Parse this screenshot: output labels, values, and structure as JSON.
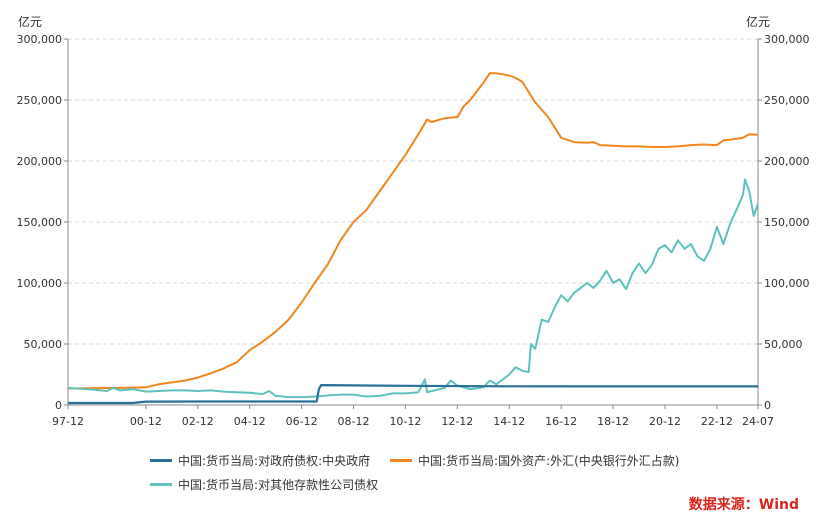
{
  "chart_data": {
    "type": "line",
    "title": "",
    "xlabel": "",
    "ylabel_left": "亿元",
    "ylabel_right": "亿元",
    "ylim": [
      0,
      300000
    ],
    "y_ticks": [
      0,
      50000,
      100000,
      150000,
      200000,
      250000,
      300000
    ],
    "y_tick_labels": [
      "0",
      "50,000",
      "100,000",
      "150,000",
      "200,000",
      "250,000",
      "300,000"
    ],
    "x_range": [
      "1997-12",
      "2024-07"
    ],
    "x_tick_labels": [
      "97-12",
      "00-12",
      "02-12",
      "04-12",
      "06-12",
      "08-12",
      "10-12",
      "12-12",
      "14-12",
      "16-12",
      "18-12",
      "20-12",
      "22-12",
      "24-07"
    ],
    "x_tick_dates": [
      "1997-12",
      "2000-12",
      "2002-12",
      "2004-12",
      "2006-12",
      "2008-12",
      "2010-12",
      "2012-12",
      "2014-12",
      "2016-12",
      "2018-12",
      "2020-12",
      "2022-12",
      "2024-07"
    ],
    "grid": true,
    "legend_position": "bottom",
    "series": [
      {
        "name": "中国:货币当局:对政府债权:中央政府",
        "color": "#2a6f97",
        "points": [
          [
            "1997-12",
            1600
          ],
          [
            "2000-06",
            1600
          ],
          [
            "2000-12",
            2800
          ],
          [
            "2002-12",
            2900
          ],
          [
            "2004-12",
            2900
          ],
          [
            "2006-12",
            2900
          ],
          [
            "2007-07",
            2900
          ],
          [
            "2007-08",
            13000
          ],
          [
            "2007-09",
            16300
          ],
          [
            "2010-12",
            15700
          ],
          [
            "2014-12",
            15300
          ],
          [
            "2018-12",
            15250
          ],
          [
            "2024-07",
            15240
          ]
        ]
      },
      {
        "name": "中国:货币当局:国外资产:外汇(中央银行外汇占款)",
        "color": "#f0861d",
        "points": [
          [
            "1997-12",
            13500
          ],
          [
            "1999-12",
            14000
          ],
          [
            "2000-12",
            14500
          ],
          [
            "2001-06",
            17000
          ],
          [
            "2001-12",
            18500
          ],
          [
            "2002-06",
            20000
          ],
          [
            "2002-12",
            22500
          ],
          [
            "2003-06",
            26000
          ],
          [
            "2003-12",
            30000
          ],
          [
            "2004-06",
            35000
          ],
          [
            "2004-12",
            45000
          ],
          [
            "2005-06",
            52000
          ],
          [
            "2005-12",
            60000
          ],
          [
            "2006-06",
            70000
          ],
          [
            "2006-12",
            84000
          ],
          [
            "2007-06",
            100000
          ],
          [
            "2007-12",
            115000
          ],
          [
            "2008-06",
            135000
          ],
          [
            "2008-12",
            150000
          ],
          [
            "2009-06",
            160000
          ],
          [
            "2009-12",
            175000
          ],
          [
            "2010-06",
            190000
          ],
          [
            "2010-12",
            205000
          ],
          [
            "2011-06",
            222000
          ],
          [
            "2011-10",
            234000
          ],
          [
            "2011-12",
            232000
          ],
          [
            "2012-06",
            235000
          ],
          [
            "2012-12",
            236000
          ],
          [
            "2013-03",
            245000
          ],
          [
            "2013-06",
            250000
          ],
          [
            "2013-12",
            264000
          ],
          [
            "2014-03",
            272000
          ],
          [
            "2014-06",
            272000
          ],
          [
            "2014-12",
            270000
          ],
          [
            "2015-03",
            268000
          ],
          [
            "2015-06",
            265000
          ],
          [
            "2015-12",
            248000
          ],
          [
            "2016-06",
            236000
          ],
          [
            "2016-12",
            219000
          ],
          [
            "2017-06",
            215500
          ],
          [
            "2017-12",
            215000
          ],
          [
            "2018-03",
            215500
          ],
          [
            "2018-06",
            213000
          ],
          [
            "2018-12",
            212500
          ],
          [
            "2019-06",
            212000
          ],
          [
            "2019-12",
            212000
          ],
          [
            "2020-06",
            211500
          ],
          [
            "2020-12",
            211500
          ],
          [
            "2021-06",
            212000
          ],
          [
            "2021-12",
            213000
          ],
          [
            "2022-06",
            213500
          ],
          [
            "2022-12",
            213000
          ],
          [
            "2023-03",
            217000
          ],
          [
            "2023-06",
            217500
          ],
          [
            "2023-12",
            219000
          ],
          [
            "2024-03",
            222000
          ],
          [
            "2024-07",
            221500
          ]
        ]
      },
      {
        "name": "中国:货币当局:对其他存款性公司债权",
        "color": "#5fc1bc",
        "points": [
          [
            "1997-12",
            14000
          ],
          [
            "1998-12",
            12500
          ],
          [
            "1999-06",
            11500
          ],
          [
            "1999-09",
            14000
          ],
          [
            "1999-12",
            12000
          ],
          [
            "2000-06",
            13000
          ],
          [
            "2000-12",
            11000
          ],
          [
            "2001-06",
            11500
          ],
          [
            "2001-12",
            12000
          ],
          [
            "2002-06",
            12000
          ],
          [
            "2002-12",
            11500
          ],
          [
            "2003-06",
            12000
          ],
          [
            "2003-12",
            11000
          ],
          [
            "2004-06",
            10500
          ],
          [
            "2004-12",
            10000
          ],
          [
            "2005-06",
            9000
          ],
          [
            "2005-09",
            11500
          ],
          [
            "2005-12",
            7500
          ],
          [
            "2006-06",
            6500
          ],
          [
            "2006-12",
            6500
          ],
          [
            "2007-06",
            7000
          ],
          [
            "2007-12",
            7800
          ],
          [
            "2008-06",
            8500
          ],
          [
            "2008-12",
            8500
          ],
          [
            "2009-06",
            7000
          ],
          [
            "2009-12",
            7500
          ],
          [
            "2010-06",
            9500
          ],
          [
            "2010-12",
            9500
          ],
          [
            "2011-06",
            10500
          ],
          [
            "2011-09",
            21000
          ],
          [
            "2011-10",
            10500
          ],
          [
            "2012-06",
            14000
          ],
          [
            "2012-09",
            20000
          ],
          [
            "2012-12",
            16000
          ],
          [
            "2013-06",
            13000
          ],
          [
            "2013-12",
            14500
          ],
          [
            "2014-03",
            20000
          ],
          [
            "2014-06",
            17000
          ],
          [
            "2014-12",
            25000
          ],
          [
            "2015-03",
            31000
          ],
          [
            "2015-06",
            28000
          ],
          [
            "2015-09",
            27000
          ],
          [
            "2015-10",
            50000
          ],
          [
            "2015-12",
            46000
          ],
          [
            "2016-03",
            70000
          ],
          [
            "2016-06",
            68000
          ],
          [
            "2016-09",
            80000
          ],
          [
            "2016-12",
            90000
          ],
          [
            "2017-03",
            85000
          ],
          [
            "2017-06",
            92000
          ],
          [
            "2017-09",
            96000
          ],
          [
            "2017-12",
            100000
          ],
          [
            "2018-03",
            96000
          ],
          [
            "2018-06",
            102000
          ],
          [
            "2018-09",
            110000
          ],
          [
            "2018-12",
            100000
          ],
          [
            "2019-03",
            103000
          ],
          [
            "2019-06",
            95000
          ],
          [
            "2019-09",
            108000
          ],
          [
            "2019-12",
            116000
          ],
          [
            "2020-03",
            108000
          ],
          [
            "2020-06",
            115000
          ],
          [
            "2020-09",
            128000
          ],
          [
            "2020-12",
            131000
          ],
          [
            "2021-03",
            125000
          ],
          [
            "2021-06",
            135000
          ],
          [
            "2021-09",
            128000
          ],
          [
            "2021-12",
            132000
          ],
          [
            "2022-03",
            122000
          ],
          [
            "2022-06",
            118000
          ],
          [
            "2022-09",
            128000
          ],
          [
            "2022-12",
            146000
          ],
          [
            "2023-03",
            132000
          ],
          [
            "2023-06",
            148000
          ],
          [
            "2023-09",
            160000
          ],
          [
            "2023-12",
            172000
          ],
          [
            "2024-01",
            185000
          ],
          [
            "2024-03",
            175000
          ],
          [
            "2024-05",
            155000
          ],
          [
            "2024-07",
            165000
          ]
        ]
      }
    ]
  },
  "footer": {
    "source": "数据来源：Wind",
    "source_color": "#d9261c"
  }
}
